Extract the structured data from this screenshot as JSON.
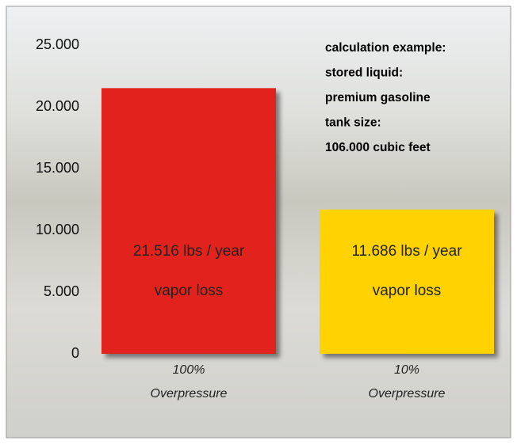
{
  "chart_data": {
    "type": "bar",
    "categories": [
      [
        "100%",
        "Overpressure"
      ],
      [
        "10%",
        "Overpressure"
      ]
    ],
    "values": [
      21516,
      11686
    ],
    "value_labels": [
      "21.516 lbs / year",
      "11.686 lbs / year"
    ],
    "bar_notes": [
      "vapor loss",
      "vapor loss"
    ],
    "colors": [
      "#e2231a",
      "#ffd200"
    ],
    "ylim": [
      0,
      25000
    ],
    "yticks": [
      0,
      {
        "value": 5000,
        "label": "5.000"
      },
      {
        "value": 10000,
        "label": "10.000"
      },
      {
        "value": 15000,
        "label": "15.000"
      },
      {
        "value": 20000,
        "label": "20.000"
      },
      {
        "value": 25000,
        "label": "25.000"
      }
    ],
    "grid": false,
    "annotations": [
      "calculation example:",
      "stored liquid:",
      "premium gasoline",
      "tank size:",
      "106.000 cubic feet"
    ]
  }
}
